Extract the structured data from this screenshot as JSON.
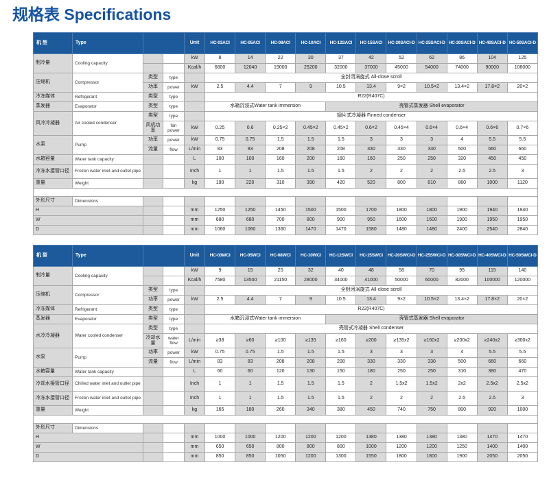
{
  "title": "规格表 Specifications",
  "colors": {
    "title_color": "#1553a4",
    "header_bg": "#1c5a9c",
    "cell_gray": "#d9d9d9",
    "border": "#a8a8a8"
  },
  "header_labels": {
    "model_zh": "机  型",
    "model_en": "Type",
    "unit": "Unit"
  },
  "tables": [
    {
      "name": "air-cooled",
      "models": [
        "HC-03ACI",
        "HC-05ACI",
        "HC-08ACI",
        "HC-10ACI",
        "HC-12SACI",
        "HC-15SACI",
        "HC-20SACI-D",
        "HC-25SACI-D",
        "HC-30SACI-D",
        "HC-40SACI-D",
        "HC-50SACI-D"
      ],
      "rows": [
        {
          "zh": "制冷量",
          "en": "Cooling capacity",
          "rs": 2,
          "unit": "kW",
          "cells": [
            "8",
            "14",
            "22",
            "30",
            "37",
            "42",
            "52",
            "62",
            "86",
            "104",
            "125"
          ]
        },
        {
          "unit": "Kcal/h",
          "cells": [
            "6800",
            "12040",
            "19000",
            "25200",
            "32000",
            "37000",
            "45000",
            "54000",
            "74000",
            "90000",
            "108000"
          ]
        },
        {
          "zh": "压缩机",
          "en": "Compressor",
          "rs": 2,
          "sub_zh": "类型",
          "sub_en": "type",
          "unit": "",
          "spans": [
            {
              "text": "全封闭涡旋式 All-close scroll",
              "cols": 11,
              "shaded": false
            }
          ]
        },
        {
          "sub_zh": "功率",
          "sub_en": "power",
          "unit": "kW",
          "cells": [
            "2.5",
            "4.4",
            "7",
            "9",
            "10.5",
            "13.4",
            "9×2",
            "10.5×2",
            "13.4×2",
            "17.8×2",
            "20×2"
          ]
        },
        {
          "zh": "冷冻媒体",
          "en": "Refrigerant",
          "rs": 1,
          "sub_zh": "类型",
          "sub_en": "type",
          "unit": "",
          "spans": [
            {
              "text": "R22(R407C)",
              "cols": 11,
              "shaded": false
            }
          ]
        },
        {
          "zh": "蒸发器",
          "en": "Evaporator",
          "rs": 1,
          "sub_zh": "类型",
          "sub_en": "type",
          "unit": "",
          "spans": [
            {
              "text": "水箱沉浸式Water tank immersion",
              "cols": 4,
              "shaded": false
            },
            {
              "text": "壳管式蒸发器 Shell evaporator",
              "cols": 7,
              "shaded": true
            }
          ]
        },
        {
          "zh": "风冷冷凝器",
          "en": "Air cooled condenser",
          "rs": 2,
          "sub_zh": "类型",
          "sub_en": "type",
          "unit": "",
          "spans": [
            {
              "text": "翅片式冷凝器 Finned condenser",
              "cols": 11,
              "shaded": false
            }
          ]
        },
        {
          "sub_zh": "风机功率",
          "sub_en": "fan power",
          "unit": "kW",
          "tall": true,
          "cells": [
            "0.25",
            "0.6",
            "0.25×2",
            "0.45×2",
            "0.45×2",
            "0.6×2",
            "0.45×4",
            "0.6×4",
            "0.6×4",
            "0.6×6",
            "0.7×6"
          ]
        },
        {
          "zh": "水泵",
          "en": "Pump",
          "rs": 2,
          "sub_zh": "功率",
          "sub_en": "power",
          "unit": "kW",
          "cells": [
            "0.75",
            "0.75",
            "1.5",
            "1.5",
            "1.5",
            "3",
            "3",
            "3",
            "4",
            "5.5",
            "5.5"
          ]
        },
        {
          "sub_zh": "流量",
          "sub_en": "flow",
          "unit": "L/min",
          "cells": [
            "83",
            "83",
            "208",
            "208",
            "208",
            "330",
            "330",
            "330",
            "500",
            "660",
            "660"
          ]
        },
        {
          "zh": "水箱容量",
          "en": "Water tank capacity",
          "rs": 1,
          "unit": "L",
          "cells": [
            "100",
            "100",
            "160",
            "200",
            "160",
            "160",
            "250",
            "250",
            "320",
            "450",
            "450"
          ]
        },
        {
          "zh": "冷冻水接管口径",
          "en": "Frozen water inlet and outlet pipe",
          "rs": 1,
          "unit": "Inch",
          "tall": true,
          "cells": [
            "1",
            "1",
            "1.5",
            "1.5",
            "1.5",
            "2",
            "2",
            "2",
            "2.5",
            "2.5",
            "3"
          ]
        },
        {
          "zh": "重量",
          "en": "Weight",
          "rs": 1,
          "unit": "kg",
          "cells": [
            "190",
            "220",
            "310",
            "390",
            "420",
            "520",
            "800",
            "810",
            "860",
            "1000",
            "1120"
          ]
        },
        {
          "spacer": true
        },
        {
          "zh": "外形尺寸",
          "en": "Dimensions",
          "rs": 1,
          "unit": "",
          "cells": [
            "",
            "",
            "",
            "",
            "",
            "",
            "",
            "",
            "",
            "",
            ""
          ]
        },
        {
          "zh": "H",
          "zh_colspan": 2,
          "rs": 1,
          "unit": "mm",
          "cells": [
            "1250",
            "1250",
            "1450",
            "1500",
            "1500",
            "1700",
            "1800",
            "1800",
            "1900",
            "1940",
            "1940"
          ]
        },
        {
          "zh": "W",
          "zh_colspan": 2,
          "rs": 1,
          "unit": "mm",
          "cells": [
            "680",
            "680",
            "700",
            "800",
            "900",
            "950",
            "1600",
            "1600",
            "1900",
            "1950",
            "1950"
          ]
        },
        {
          "zh": "D",
          "zh_colspan": 2,
          "rs": 1,
          "unit": "mm",
          "cells": [
            "1060",
            "1060",
            "1360",
            "1470",
            "1470",
            "1580",
            "1480",
            "1480",
            "2400",
            "2540",
            "2840"
          ]
        }
      ]
    },
    {
      "name": "water-cooled",
      "models": [
        "HC-03WCI",
        "HC-05WCI",
        "HC-08WCI",
        "HC-10WCI",
        "HC-12SWCI",
        "HC-15SWCI",
        "HC-20SWCI-D",
        "HC-25SWCI-D",
        "HC-30SWCI-D",
        "HC-40SWCI-D",
        "HC-50SWCI-D"
      ],
      "rows": [
        {
          "zh": "制冷量",
          "en": "Cooling capacity",
          "rs": 2,
          "unit": "kW",
          "cells": [
            "9",
            "15",
            "25",
            "32",
            "40",
            "48",
            "58",
            "70",
            "95",
            "115",
            "140"
          ]
        },
        {
          "unit": "Kcal/h",
          "cells": [
            "7580",
            "13500",
            "21150",
            "28000",
            "34000",
            "41000",
            "50000",
            "60000",
            "82000",
            "100000",
            "120000"
          ]
        },
        {
          "zh": "压缩机",
          "en": "Compressor",
          "rs": 2,
          "sub_zh": "类型",
          "sub_en": "type",
          "unit": "",
          "spans": [
            {
              "text": "全封闭涡旋式 All-close scroll",
              "cols": 11,
              "shaded": false
            }
          ]
        },
        {
          "sub_zh": "功率",
          "sub_en": "power",
          "unit": "kW",
          "cells": [
            "2.5",
            "4.4",
            "7",
            "9",
            "10.5",
            "13.4",
            "9×2",
            "10.5×2",
            "13.4×2",
            "17.8×2",
            "20×2"
          ]
        },
        {
          "zh": "冷冻媒体",
          "en": "Refrigerant",
          "rs": 1,
          "sub_zh": "类型",
          "sub_en": "type",
          "unit": "",
          "spans": [
            {
              "text": "R22(R407C)",
              "cols": 11,
              "shaded": false
            }
          ]
        },
        {
          "zh": "蒸发器",
          "en": "Evaporator",
          "rs": 1,
          "sub_zh": "类型",
          "sub_en": "type",
          "unit": "",
          "spans": [
            {
              "text": "水箱沉浸式Water tank immersion",
              "cols": 4,
              "shaded": false
            },
            {
              "text": "壳管式蒸发器 Shell evaporator",
              "cols": 7,
              "shaded": true
            }
          ]
        },
        {
          "zh": "水冷冷凝器",
          "en": "Water cooled condenser",
          "rs": 2,
          "sub_zh": "类型",
          "sub_en": "type",
          "unit": "",
          "spans": [
            {
              "text": "壳管式冷凝器 Shell condenser",
              "cols": 11,
              "shaded": false
            }
          ]
        },
        {
          "sub_zh": "冷却水量",
          "sub_en": "water flow",
          "unit": "L/min",
          "tall": true,
          "cells": [
            "≥38",
            "≥60",
            "≥100",
            "≥135",
            "≥160",
            "≥200",
            "≥135x2",
            "≥160x2",
            "≥200x2",
            "≥240x2",
            "≥300x2"
          ]
        },
        {
          "zh": "水泵",
          "en": "Pump",
          "rs": 2,
          "sub_zh": "功率",
          "sub_en": "power",
          "unit": "kW",
          "cells": [
            "0.75",
            "0.75",
            "1.5",
            "1.5",
            "1.5",
            "3",
            "3",
            "3",
            "4",
            "5.5",
            "5.5"
          ]
        },
        {
          "sub_zh": "流量",
          "sub_en": "flow",
          "unit": "L/min",
          "cells": [
            "83",
            "83",
            "208",
            "208",
            "208",
            "330",
            "330",
            "330",
            "500",
            "660",
            "660"
          ]
        },
        {
          "zh": "水箱容量",
          "en": "Water tank capacity",
          "rs": 1,
          "unit": "L",
          "cells": [
            "60",
            "60",
            "120",
            "130",
            "150",
            "180",
            "250",
            "250",
            "310",
            "380",
            "470"
          ]
        },
        {
          "zh": "冷却水接管口径",
          "en": "Chilled water inlet and outlet pipe",
          "rs": 1,
          "unit": "Inch",
          "tall": true,
          "cells": [
            "1",
            "1",
            "1.5",
            "1.5",
            "1.5",
            "2",
            "1.5x2",
            "1.5x2",
            "2x2",
            "2.5x2",
            "2.5x2"
          ]
        },
        {
          "zh": "冷冻水接管口径",
          "en": "Frozen water inlet and outlet pipe",
          "rs": 1,
          "unit": "Inch",
          "tall": true,
          "cells": [
            "1",
            "1",
            "1.5",
            "1.5",
            "1.5",
            "2",
            "2",
            "2",
            "2.5",
            "2.5",
            "3"
          ]
        },
        {
          "zh": "重量",
          "en": "Weight",
          "rs": 1,
          "unit": "kg",
          "cells": [
            "165",
            "180",
            "260",
            "340",
            "380",
            "450",
            "740",
            "750",
            "800",
            "920",
            "1000"
          ]
        },
        {
          "spacer": true
        },
        {
          "zh": "外形尺寸",
          "en": "Dimensions",
          "rs": 1,
          "unit": "",
          "cells": [
            "",
            "",
            "",
            "",
            "",
            "",
            "",
            "",
            "",
            "",
            ""
          ]
        },
        {
          "zh": "H",
          "zh_colspan": 2,
          "rs": 1,
          "unit": "mm",
          "cells": [
            "1000",
            "1000",
            "1200",
            "1200",
            "1200",
            "1380",
            "1380",
            "1380",
            "1380",
            "1470",
            "1470"
          ]
        },
        {
          "zh": "W",
          "zh_colspan": 2,
          "rs": 1,
          "unit": "mm",
          "cells": [
            "650",
            "650",
            "800",
            "800",
            "800",
            "1000",
            "1200",
            "1200",
            "1250",
            "1400",
            "1400"
          ]
        },
        {
          "zh": "D",
          "zh_colspan": 2,
          "rs": 1,
          "unit": "mm",
          "cells": [
            "850",
            "850",
            "1050",
            "1200",
            "1300",
            "1550",
            "1800",
            "1800",
            "1900",
            "2050",
            "2050"
          ]
        }
      ]
    }
  ]
}
